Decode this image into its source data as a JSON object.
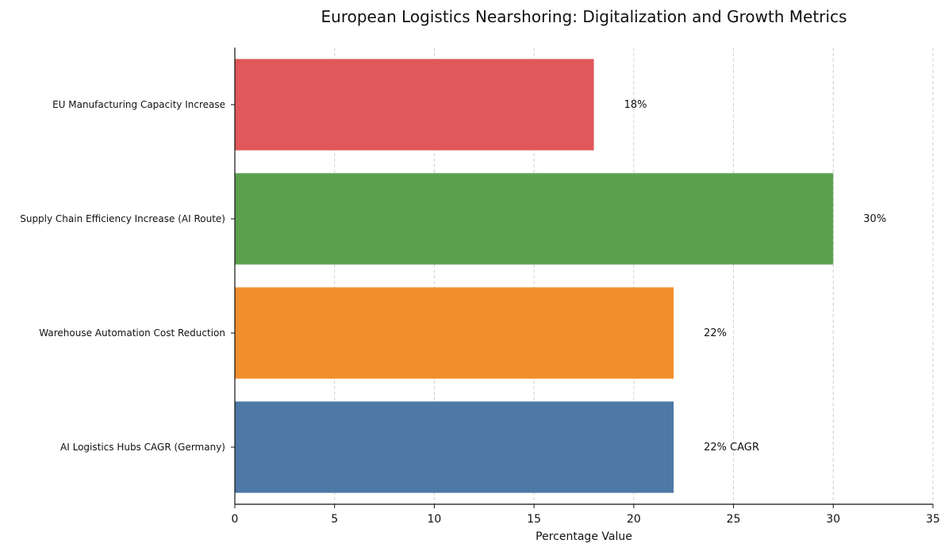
{
  "chart_data": {
    "type": "bar",
    "orientation": "horizontal",
    "title": "European Logistics Nearshoring: Digitalization and Growth Metrics",
    "xlabel": "Percentage Value",
    "ylabel": "",
    "xlim": [
      0,
      35
    ],
    "xticks": [
      0,
      5,
      10,
      15,
      20,
      25,
      30,
      35
    ],
    "grid": "vertical-dashed",
    "categories": [
      "EU Manufacturing Capacity Increase",
      "Supply Chain Efficiency Increase (AI Route)",
      "Warehouse Automation Cost Reduction",
      "AI Logistics Hubs CAGR (Germany)"
    ],
    "values": [
      18,
      30,
      22,
      22
    ],
    "data_labels": [
      "18%",
      "30%",
      "22%",
      "22% CAGR"
    ],
    "colors": [
      "#e0585b",
      "#5aa04f",
      "#f28e2c",
      "#4e78a6"
    ]
  }
}
